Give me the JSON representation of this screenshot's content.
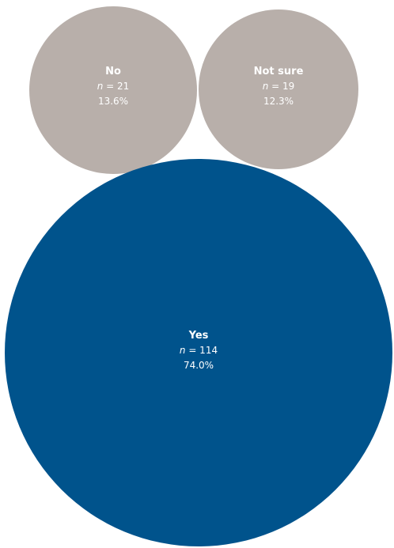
{
  "colors": {
    "yes": "#00538c",
    "other": "#b8afaa",
    "label": "#ffffff"
  },
  "chart_data": {
    "type": "bubble",
    "title": "",
    "categories": [
      "No",
      "Not sure",
      "Yes"
    ],
    "series": [
      {
        "values": [
          {
            "category": "No",
            "n_label": "n",
            "n": 21,
            "n_text": "= 21",
            "percent": 13.6,
            "percent_text": "13.6%",
            "color_key": "other"
          },
          {
            "category": "Not sure",
            "n_label": "n",
            "n": 19,
            "n_text": "= 19",
            "percent": 12.3,
            "percent_text": "12.3%",
            "color_key": "other"
          },
          {
            "category": "Yes",
            "n_label": "n",
            "n": 114,
            "n_text": "= 114",
            "percent": 74.0,
            "percent_text": "74.0%",
            "color_key": "yes"
          }
        ]
      }
    ],
    "legend": "none",
    "grid": false
  }
}
